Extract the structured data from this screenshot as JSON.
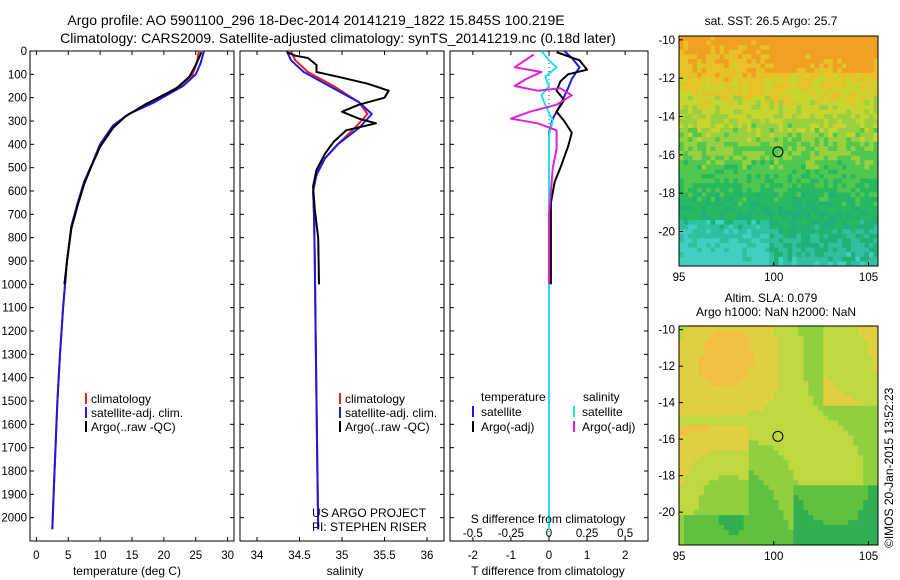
{
  "title": {
    "line1": "Argo profile: AO 5901100_296 18-Dec-2014 20141219_1822 15.845S 100.219E",
    "line2": "Climatology: CARS2009. Satellite-adjusted climatology: synTS_20141219.nc (0.18d later)"
  },
  "colors": {
    "climatology": "#e8201e",
    "satellite": "#1a1ae0",
    "argo": "#000000",
    "salinity_satellite": "#22e0f0",
    "salinity_argo": "#e020d8"
  },
  "chart_data": [
    {
      "type": "line",
      "panel": "temperature",
      "xlabel": "temperature (deg C)",
      "ylabel": "",
      "xlim": [
        -1,
        31
      ],
      "ylim": [
        2100,
        0
      ],
      "xticks": [
        0,
        5,
        10,
        15,
        20,
        25,
        30
      ],
      "yticks": [
        0,
        100,
        200,
        300,
        400,
        500,
        600,
        700,
        800,
        900,
        1000,
        1100,
        1200,
        1300,
        1400,
        1500,
        1600,
        1700,
        1800,
        1900,
        2000
      ],
      "legend": [
        "climatology",
        "satellite-adj. clim.",
        "Argo(..raw -QC)"
      ],
      "legend_placement": "lower-middle",
      "series": [
        {
          "name": "climatology",
          "color": "#e8201e",
          "points": [
            [
              25.5,
              0
            ],
            [
              25.2,
              50
            ],
            [
              24.5,
              100
            ],
            [
              22.5,
              150
            ],
            [
              18,
              220
            ],
            [
              14.5,
              270
            ],
            [
              12,
              320
            ],
            [
              10,
              400
            ],
            [
              8.8,
              480
            ],
            [
              7.5,
              560
            ],
            [
              6.5,
              650
            ],
            [
              5.5,
              750
            ],
            [
              4.8,
              900
            ],
            [
              4.2,
              1100
            ],
            [
              3.7,
              1300
            ],
            [
              3.3,
              1500
            ],
            [
              3,
              1700
            ],
            [
              2.7,
              1900
            ],
            [
              2.5,
              2050
            ]
          ]
        },
        {
          "name": "satellite-adj. clim.",
          "color": "#1a1ae0",
          "points": [
            [
              26.3,
              0
            ],
            [
              25.8,
              50
            ],
            [
              25,
              100
            ],
            [
              23,
              150
            ],
            [
              18.5,
              220
            ],
            [
              14.5,
              270
            ],
            [
              12,
              320
            ],
            [
              10,
              400
            ],
            [
              8.8,
              480
            ],
            [
              7.5,
              560
            ],
            [
              6.5,
              650
            ],
            [
              5.5,
              750
            ],
            [
              4.8,
              900
            ],
            [
              4.2,
              1100
            ],
            [
              3.7,
              1300
            ],
            [
              3.3,
              1500
            ],
            [
              3,
              1700
            ],
            [
              2.7,
              1900
            ],
            [
              2.5,
              2050
            ]
          ]
        },
        {
          "name": "Argo(..raw -QC)",
          "color": "#000000",
          "points": [
            [
              25.9,
              5
            ],
            [
              25.5,
              30
            ],
            [
              24.8,
              70
            ],
            [
              24,
              110
            ],
            [
              22,
              160
            ],
            [
              17,
              230
            ],
            [
              14,
              280
            ],
            [
              12,
              330
            ],
            [
              10,
              410
            ],
            [
              8.7,
              490
            ],
            [
              7.5,
              570
            ],
            [
              6.5,
              660
            ],
            [
              5.5,
              760
            ],
            [
              4.8,
              900
            ],
            [
              4.4,
              1000
            ]
          ]
        }
      ]
    },
    {
      "type": "line",
      "panel": "salinity",
      "xlabel": "salinity",
      "xlim": [
        33.8,
        36.2
      ],
      "ylim": [
        2100,
        0
      ],
      "xticks": [
        34,
        34.5,
        35,
        35.5,
        36
      ],
      "legend": [
        "climatology",
        "satellite-adj. clim.",
        "Argo(..raw -QC)"
      ],
      "legend_placement": "lower-middle",
      "series": [
        {
          "name": "climatology",
          "color": "#e8201e",
          "points": [
            [
              34.4,
              0
            ],
            [
              34.45,
              40
            ],
            [
              34.6,
              90
            ],
            [
              34.9,
              150
            ],
            [
              35.2,
              220
            ],
            [
              35.3,
              270
            ],
            [
              35.15,
              330
            ],
            [
              34.95,
              400
            ],
            [
              34.8,
              460
            ],
            [
              34.7,
              530
            ],
            [
              34.66,
              600
            ],
            [
              34.67,
              700
            ],
            [
              34.68,
              900
            ],
            [
              34.69,
              1200
            ],
            [
              34.7,
              1500
            ],
            [
              34.71,
              1800
            ],
            [
              34.72,
              2050
            ]
          ]
        },
        {
          "name": "satellite-adj. clim.",
          "color": "#1a1ae0",
          "points": [
            [
              34.35,
              0
            ],
            [
              34.4,
              40
            ],
            [
              34.55,
              90
            ],
            [
              34.85,
              150
            ],
            [
              35.2,
              220
            ],
            [
              35.35,
              270
            ],
            [
              35.2,
              330
            ],
            [
              34.95,
              400
            ],
            [
              34.8,
              460
            ],
            [
              34.7,
              530
            ],
            [
              34.66,
              600
            ],
            [
              34.67,
              700
            ],
            [
              34.68,
              900
            ],
            [
              34.69,
              1200
            ],
            [
              34.7,
              1500
            ],
            [
              34.71,
              1800
            ],
            [
              34.72,
              2050
            ]
          ]
        },
        {
          "name": "Argo(..raw -QC)",
          "color": "#000000",
          "points": [
            [
              34.35,
              5
            ],
            [
              34.45,
              20
            ],
            [
              34.6,
              30
            ],
            [
              34.7,
              60
            ],
            [
              34.7,
              90
            ],
            [
              34.95,
              110
            ],
            [
              35.3,
              140
            ],
            [
              35.55,
              170
            ],
            [
              35.5,
              200
            ],
            [
              35.2,
              230
            ],
            [
              35.0,
              260
            ],
            [
              35.2,
              290
            ],
            [
              35.4,
              310
            ],
            [
              35.05,
              340
            ],
            [
              34.9,
              390
            ],
            [
              34.8,
              440
            ],
            [
              34.7,
              510
            ],
            [
              34.66,
              580
            ],
            [
              34.68,
              680
            ],
            [
              34.72,
              800
            ],
            [
              34.73,
              1000
            ]
          ]
        }
      ]
    },
    {
      "type": "line",
      "panel": "difference",
      "xlabel": "T difference from climatology",
      "xlabel_top": "S difference from climatology",
      "xlim": [
        -2.6,
        2.6
      ],
      "ylim": [
        2100,
        0
      ],
      "xticks": [
        -2,
        -1,
        0,
        1,
        2
      ],
      "xticks_S": [
        "-0.5",
        "-0.25",
        "0",
        "0.25",
        "0.5"
      ],
      "legend": {
        "temperature_header": "temperature",
        "salinity_header": "salinity",
        "items": [
          "satellite",
          "Argo(-adj)",
          "satellite",
          "Argo(-adj)"
        ]
      },
      "legend_placement": "lower-middle",
      "series": [
        {
          "name": "satellite",
          "color": "#1a1ae0",
          "points": [
            [
              0.4,
              0
            ],
            [
              0.6,
              30
            ],
            [
              0.8,
              70
            ],
            [
              0.6,
              120
            ],
            [
              0.5,
              160
            ],
            [
              0.3,
              230
            ],
            [
              0.1,
              290
            ],
            [
              0,
              350
            ],
            [
              0,
              500
            ],
            [
              0,
              1000
            ],
            [
              0,
              2050
            ]
          ]
        },
        {
          "name": "Argo(-adj)",
          "color": "#000000",
          "points": [
            [
              0.2,
              5
            ],
            [
              0.8,
              40
            ],
            [
              1.0,
              80
            ],
            [
              0.5,
              100
            ],
            [
              0.3,
              130
            ],
            [
              0.2,
              170
            ],
            [
              0.4,
              210
            ],
            [
              0.2,
              260
            ],
            [
              0.4,
              300
            ],
            [
              0.6,
              350
            ],
            [
              0.5,
              410
            ],
            [
              0.3,
              500
            ],
            [
              0.15,
              560
            ],
            [
              0.05,
              650
            ],
            [
              0.05,
              1000
            ]
          ]
        },
        {
          "name": "satellite",
          "color": "#22e0f0",
          "points": [
            [
              -0.2,
              0
            ],
            [
              0.0,
              40
            ],
            [
              0.2,
              70
            ],
            [
              -0.1,
              110
            ],
            [
              0.0,
              150
            ],
            [
              -0.2,
              190
            ],
            [
              -0.1,
              230
            ],
            [
              0.1,
              300
            ],
            [
              0,
              360
            ],
            [
              0,
              700
            ],
            [
              0,
              2050
            ]
          ]
        },
        {
          "name": "Argo(-adj)",
          "color": "#e020d8",
          "points": [
            [
              -0.4,
              15
            ],
            [
              -0.9,
              70
            ],
            [
              -0.2,
              90
            ],
            [
              -0.6,
              120
            ],
            [
              -0.9,
              150
            ],
            [
              -0.3,
              170
            ],
            [
              0.3,
              160
            ],
            [
              0.6,
              190
            ],
            [
              0.2,
              230
            ],
            [
              -0.5,
              260
            ],
            [
              -1.0,
              290
            ],
            [
              -0.3,
              310
            ],
            [
              0.2,
              340
            ],
            [
              0.2,
              420
            ],
            [
              0.1,
              500
            ],
            [
              0.0,
              700
            ],
            [
              0.0,
              1000
            ]
          ]
        }
      ]
    },
    {
      "type": "heatmap",
      "panel": "sst_map",
      "title": "sat. SST: 26.5 Argo: 25.7",
      "xlim": [
        95,
        105.5
      ],
      "ylim": [
        -21.8,
        -9.8
      ],
      "xticks": [
        95,
        100,
        105
      ],
      "yticks": [
        -10,
        -12,
        -14,
        -16,
        -18,
        -20
      ],
      "marker": {
        "lon": 100.219,
        "lat": -15.845
      }
    },
    {
      "type": "heatmap",
      "panel": "sla_map",
      "title": "Altim. SLA: 0.079",
      "subtitle": "Argo h1000: NaN h2000: NaN",
      "xlim": [
        95,
        105.5
      ],
      "ylim": [
        -21.8,
        -9.8
      ],
      "xticks": [
        95,
        100,
        105
      ],
      "yticks": [
        -10,
        -12,
        -14,
        -16,
        -18,
        -20
      ],
      "marker": {
        "lon": 100.219,
        "lat": -15.845
      }
    }
  ],
  "annotations": {
    "project_line1": "US ARGO PROJECT",
    "project_line2": "PI: STEPHEN RISER",
    "imos_stamp": "©IMOS 20-Jan-2015 13:52:23"
  }
}
